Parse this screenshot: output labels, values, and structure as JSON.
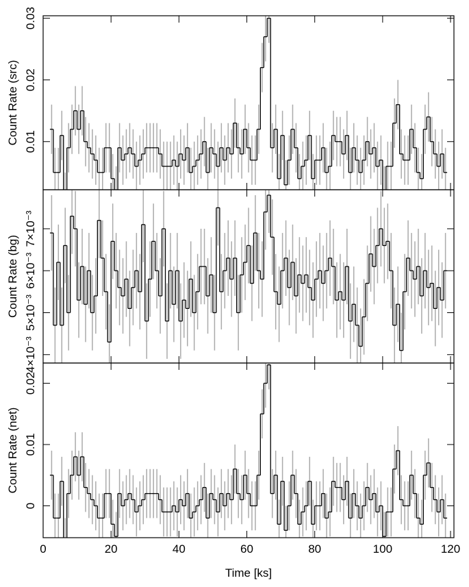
{
  "chart_data": [
    {
      "type": "step",
      "ylabel": "Count Rate (src)",
      "color": "#000000",
      "error_color": "#aaaaaa",
      "error": 0.004,
      "xlim": [
        0,
        121
      ],
      "ylim": [
        0.0022,
        0.0304
      ],
      "yticks": [
        0.01,
        0.02,
        0.03
      ],
      "x": [
        2.5,
        3.5,
        4.5,
        5.5,
        6.5,
        7.5,
        8.5,
        9.5,
        10.5,
        11.5,
        12.5,
        13.5,
        14.5,
        15.5,
        16.5,
        17.5,
        18.5,
        19.5,
        20.5,
        21.5,
        22.5,
        23.5,
        24.5,
        25.5,
        26.5,
        27.5,
        28.5,
        29.5,
        30.5,
        31.5,
        32.5,
        33.5,
        34.5,
        35.5,
        36.5,
        37.5,
        38.5,
        39.5,
        40.5,
        41.5,
        42.5,
        43.5,
        44.5,
        45.5,
        46.5,
        47.5,
        48.5,
        49.5,
        50.5,
        51.5,
        52.5,
        53.5,
        54.5,
        55.5,
        56.5,
        57.5,
        58.5,
        59.5,
        60.5,
        61.5,
        62.5,
        63.5,
        64.5,
        65.5,
        66.5,
        67.5,
        68.5,
        69.5,
        70.5,
        71.5,
        72.5,
        73.5,
        74.5,
        75.5,
        76.5,
        77.5,
        78.5,
        79.5,
        80.5,
        81.5,
        82.5,
        83.5,
        84.5,
        85.5,
        86.5,
        87.5,
        88.5,
        89.5,
        90.5,
        91.5,
        92.5,
        93.5,
        94.5,
        95.5,
        96.5,
        97.5,
        98.5,
        99.5,
        100.5,
        101.5,
        102.5,
        103.5,
        104.5,
        105.5,
        106.5,
        107.5,
        108.5,
        109.5,
        110.5,
        111.5,
        112.5,
        113.5,
        114.5,
        115.5,
        116.5,
        117.5,
        118.5
      ],
      "values": [
        0.012,
        0.005,
        0.005,
        0.011,
        0.001,
        0.009,
        0.012,
        0.015,
        0.012,
        0.015,
        0.01,
        0.009,
        0.008,
        0.007,
        0.005,
        0.005,
        0.009,
        0.009,
        0.004,
        0.002,
        0.009,
        0.007,
        0.008,
        0.009,
        0.008,
        0.006,
        0.007,
        0.008,
        0.009,
        0.009,
        0.009,
        0.009,
        0.008,
        0.006,
        0.006,
        0.006,
        0.007,
        0.006,
        0.008,
        0.007,
        0.009,
        0.005,
        0.006,
        0.007,
        0.008,
        0.01,
        0.005,
        0.009,
        0.008,
        0.006,
        0.009,
        0.007,
        0.009,
        0.008,
        0.013,
        0.009,
        0.008,
        0.012,
        0.009,
        0.007,
        0.007,
        0.012,
        0.022,
        0.027,
        0.03,
        0.009,
        0.012,
        0.004,
        0.011,
        0.003,
        0.007,
        0.012,
        0.009,
        0.004,
        0.006,
        0.007,
        0.011,
        0.004,
        0.007,
        0.007,
        0.009,
        0.005,
        0.006,
        0.011,
        0.01,
        0.01,
        0.008,
        0.011,
        0.005,
        0.009,
        0.007,
        0.005,
        0.007,
        0.01,
        0.008,
        0.009,
        0.006,
        0.007,
        0.002,
        0.006,
        0.006,
        0.013,
        0.016,
        0.008,
        0.007,
        0.007,
        0.012,
        0.009,
        0.005,
        0.004,
        0.012,
        0.014,
        0.01,
        0.008,
        0.006,
        0.008,
        0.005
      ]
    },
    {
      "type": "step",
      "ylabel": "Count Rate (bg)",
      "color": "#000000",
      "error_color": "#aaaaaa",
      "error": 0.0009,
      "xlim": [
        0,
        121
      ],
      "ylim": [
        0.0038,
        0.00793
      ],
      "yticks": [
        {
          "value": 0.004,
          "label": "4×10⁻³"
        },
        {
          "value": 0.005,
          "label": "5×10⁻³"
        },
        {
          "value": 0.006,
          "label": "6×10⁻³"
        },
        {
          "value": 0.007,
          "label": "7×10⁻³"
        }
      ],
      "x": [
        2.5,
        3.5,
        4.5,
        5.5,
        6.5,
        7.5,
        8.5,
        9.5,
        10.5,
        11.5,
        12.5,
        13.5,
        14.5,
        15.5,
        16.5,
        17.5,
        18.5,
        19.5,
        20.5,
        21.5,
        22.5,
        23.5,
        24.5,
        25.5,
        26.5,
        27.5,
        28.5,
        29.5,
        30.5,
        31.5,
        32.5,
        33.5,
        34.5,
        35.5,
        36.5,
        37.5,
        38.5,
        39.5,
        40.5,
        41.5,
        42.5,
        43.5,
        44.5,
        45.5,
        46.5,
        47.5,
        48.5,
        49.5,
        50.5,
        51.5,
        52.5,
        53.5,
        54.5,
        55.5,
        56.5,
        57.5,
        58.5,
        59.5,
        60.5,
        61.5,
        62.5,
        63.5,
        64.5,
        65.5,
        66.5,
        67.5,
        68.5,
        69.5,
        70.5,
        71.5,
        72.5,
        73.5,
        74.5,
        75.5,
        76.5,
        77.5,
        78.5,
        79.5,
        80.5,
        81.5,
        82.5,
        83.5,
        84.5,
        85.5,
        86.5,
        87.5,
        88.5,
        89.5,
        90.5,
        91.5,
        92.5,
        93.5,
        94.5,
        95.5,
        96.5,
        97.5,
        98.5,
        99.5,
        100.5,
        101.5,
        102.5,
        103.5,
        104.5,
        105.5,
        106.5,
        107.5,
        108.5,
        109.5,
        110.5,
        111.5,
        112.5,
        113.5,
        114.5,
        115.5,
        116.5,
        117.5,
        118.5
      ],
      "values": [
        0.0069,
        0.0047,
        0.0062,
        0.0047,
        0.0066,
        0.005,
        0.0073,
        0.007,
        0.0053,
        0.0061,
        0.0052,
        0.006,
        0.005,
        0.0054,
        0.0072,
        0.0063,
        0.0055,
        0.0043,
        0.0067,
        0.006,
        0.0056,
        0.0054,
        0.0058,
        0.0051,
        0.0056,
        0.006,
        0.0055,
        0.0071,
        0.0048,
        0.0058,
        0.0067,
        0.006,
        0.0054,
        0.007,
        0.0048,
        0.006,
        0.0052,
        0.006,
        0.0048,
        0.0053,
        0.0051,
        0.0058,
        0.005,
        0.0055,
        0.0061,
        0.0061,
        0.0054,
        0.0059,
        0.005,
        0.0075,
        0.0055,
        0.006,
        0.0063,
        0.0058,
        0.0063,
        0.005,
        0.0059,
        0.0062,
        0.0066,
        0.0057,
        0.0069,
        0.006,
        0.0058,
        0.0074,
        0.0078,
        0.0068,
        0.0055,
        0.0052,
        0.006,
        0.0063,
        0.0056,
        0.0062,
        0.0054,
        0.0059,
        0.0057,
        0.0059,
        0.0056,
        0.0053,
        0.0058,
        0.006,
        0.0057,
        0.006,
        0.0063,
        0.0061,
        0.0053,
        0.0055,
        0.0053,
        0.0061,
        0.0048,
        0.0052,
        0.0047,
        0.0042,
        0.0049,
        0.0057,
        0.0064,
        0.0061,
        0.0066,
        0.007,
        0.0066,
        0.0067,
        0.006,
        0.0047,
        0.0052,
        0.0041,
        0.0055,
        0.0063,
        0.006,
        0.0058,
        0.0061,
        0.0054,
        0.006,
        0.0056,
        0.0057,
        0.0051,
        0.0056,
        0.0053,
        0.006
      ]
    },
    {
      "type": "step",
      "ylabel": "Count Rate (net)",
      "xlabel": "Time [ks]",
      "color": "#000000",
      "error_color": "#aaaaaa",
      "error": 0.004,
      "xlim": [
        0,
        121
      ],
      "xticks": [
        0,
        20,
        40,
        60,
        80,
        100,
        120
      ],
      "ylim": [
        -0.0052,
        0.0233
      ],
      "yticks": [
        0,
        0.01,
        0.02
      ],
      "x": [
        2.5,
        3.5,
        4.5,
        5.5,
        6.5,
        7.5,
        8.5,
        9.5,
        10.5,
        11.5,
        12.5,
        13.5,
        14.5,
        15.5,
        16.5,
        17.5,
        18.5,
        19.5,
        20.5,
        21.5,
        22.5,
        23.5,
        24.5,
        25.5,
        26.5,
        27.5,
        28.5,
        29.5,
        30.5,
        31.5,
        32.5,
        33.5,
        34.5,
        35.5,
        36.5,
        37.5,
        38.5,
        39.5,
        40.5,
        41.5,
        42.5,
        43.5,
        44.5,
        45.5,
        46.5,
        47.5,
        48.5,
        49.5,
        50.5,
        51.5,
        52.5,
        53.5,
        54.5,
        55.5,
        56.5,
        57.5,
        58.5,
        59.5,
        60.5,
        61.5,
        62.5,
        63.5,
        64.5,
        65.5,
        66.5,
        67.5,
        68.5,
        69.5,
        70.5,
        71.5,
        72.5,
        73.5,
        74.5,
        75.5,
        76.5,
        77.5,
        78.5,
        79.5,
        80.5,
        81.5,
        82.5,
        83.5,
        84.5,
        85.5,
        86.5,
        87.5,
        88.5,
        89.5,
        90.5,
        91.5,
        92.5,
        93.5,
        94.5,
        95.5,
        96.5,
        97.5,
        98.5,
        99.5,
        100.5,
        101.5,
        102.5,
        103.5,
        104.5,
        105.5,
        106.5,
        107.5,
        108.5,
        109.5,
        110.5,
        111.5,
        112.5,
        113.5,
        114.5,
        115.5,
        116.5,
        117.5,
        118.5
      ],
      "values": [
        0.005,
        -0.002,
        -0.002,
        0.004,
        -0.006,
        0.002,
        0.005,
        0.008,
        0.005,
        0.008,
        0.003,
        0.002,
        0.001,
        0,
        -0.002,
        -0.002,
        0.002,
        0.002,
        -0.003,
        -0.005,
        0.002,
        0,
        0.001,
        0.002,
        0.001,
        -0.001,
        0,
        0.001,
        0.002,
        0.002,
        0.002,
        0.002,
        0.001,
        -0.001,
        -0.001,
        -0.001,
        0,
        -0.001,
        0.001,
        0,
        0.002,
        -0.002,
        -0.001,
        0,
        0.001,
        0.003,
        -0.002,
        0.002,
        0.001,
        -0.001,
        0.002,
        0,
        0.002,
        0.001,
        0.006,
        0.002,
        0.001,
        0.005,
        0.002,
        0,
        0,
        0.005,
        0.015,
        0.02,
        0.023,
        0.002,
        0.005,
        -0.003,
        0.004,
        -0.004,
        0,
        0.005,
        0.002,
        -0.003,
        -0.001,
        0,
        0.004,
        -0.003,
        0,
        0,
        0.002,
        -0.002,
        -0.001,
        0.004,
        0.003,
        0.003,
        0.001,
        0.004,
        -0.002,
        0.002,
        0,
        -0.002,
        0,
        0.003,
        0.001,
        0.002,
        -0.001,
        0,
        -0.005,
        -0.001,
        -0.001,
        0.006,
        0.009,
        0.001,
        0,
        0,
        0.005,
        0.002,
        -0.002,
        -0.003,
        0.005,
        0.007,
        0.003,
        0.001,
        -0.001,
        0.001,
        -0.002
      ]
    }
  ]
}
